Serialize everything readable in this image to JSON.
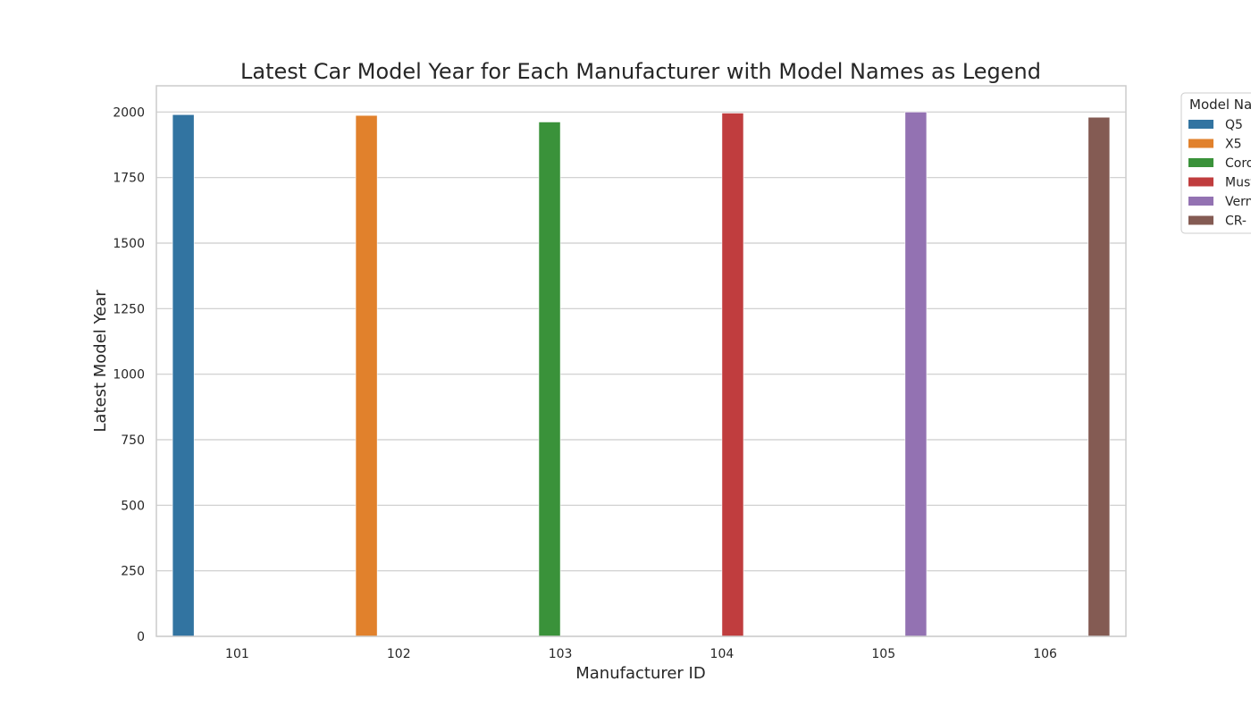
{
  "chart_data": {
    "type": "bar",
    "title": "Latest Car Model Year for Each Manufacturer with Model Names as Legend",
    "xlabel": "Manufacturer ID",
    "ylabel": "Latest Model Year",
    "categories": [
      "101",
      "102",
      "103",
      "104",
      "105",
      "106"
    ],
    "ylim": [
      0,
      2100
    ],
    "yticks": [
      0,
      250,
      500,
      750,
      1000,
      1250,
      1500,
      1750,
      2000
    ],
    "grid": true,
    "legend": {
      "title": "Model Na",
      "placement": "outside-top-right",
      "entries": [
        "Q5",
        "X5",
        "Coro",
        "Must",
        "Vern",
        "CR-"
      ]
    },
    "series": [
      {
        "name": "Q5",
        "color": "#3274a1",
        "values": [
          1990,
          null,
          null,
          null,
          null,
          null
        ]
      },
      {
        "name": "X5",
        "color": "#e1812c",
        "values": [
          null,
          1987,
          null,
          null,
          null,
          null
        ]
      },
      {
        "name": "Coro",
        "color": "#3a923a",
        "values": [
          null,
          null,
          1962,
          null,
          null,
          null
        ]
      },
      {
        "name": "Must",
        "color": "#c03d3e",
        "values": [
          null,
          null,
          null,
          1996,
          null,
          null
        ]
      },
      {
        "name": "Vern",
        "color": "#9372b2",
        "values": [
          null,
          null,
          null,
          null,
          2000,
          null
        ]
      },
      {
        "name": "CR-",
        "color": "#845b53",
        "values": [
          null,
          null,
          null,
          null,
          null,
          1980
        ]
      }
    ]
  }
}
